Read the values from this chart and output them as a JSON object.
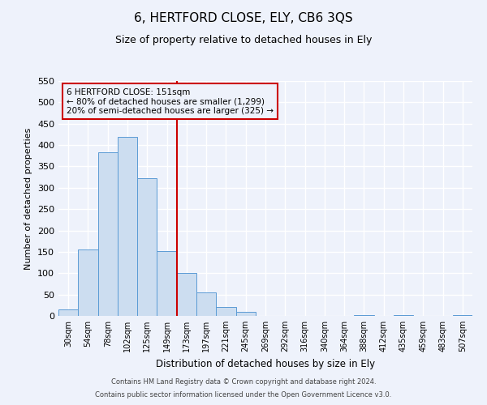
{
  "title": "6, HERTFORD CLOSE, ELY, CB6 3QS",
  "subtitle": "Size of property relative to detached houses in Ely",
  "xlabel": "Distribution of detached houses by size in Ely",
  "ylabel": "Number of detached properties",
  "categories": [
    "30sqm",
    "54sqm",
    "78sqm",
    "102sqm",
    "125sqm",
    "149sqm",
    "173sqm",
    "197sqm",
    "221sqm",
    "245sqm",
    "269sqm",
    "292sqm",
    "316sqm",
    "340sqm",
    "364sqm",
    "388sqm",
    "412sqm",
    "435sqm",
    "459sqm",
    "483sqm",
    "507sqm"
  ],
  "bar_heights": [
    15,
    155,
    383,
    420,
    322,
    152,
    100,
    55,
    20,
    10,
    0,
    0,
    0,
    0,
    0,
    2,
    0,
    1,
    0,
    0,
    2
  ],
  "bar_color": "#ccddf0",
  "bar_edge_color": "#5b9bd5",
  "vline_color": "#cc0000",
  "annotation_line1": "6 HERTFORD CLOSE: 151sqm",
  "annotation_line2": "← 80% of detached houses are smaller (1,299)",
  "annotation_line3": "20% of semi-detached houses are larger (325) →",
  "annotation_box_color": "#cc0000",
  "ylim": [
    0,
    550
  ],
  "yticks": [
    0,
    50,
    100,
    150,
    200,
    250,
    300,
    350,
    400,
    450,
    500,
    550
  ],
  "bg_color": "#eef2fb",
  "grid_color": "#ffffff",
  "footer_line1": "Contains HM Land Registry data © Crown copyright and database right 2024.",
  "footer_line2": "Contains public sector information licensed under the Open Government Licence v3.0.",
  "title_fontsize": 11,
  "subtitle_fontsize": 9
}
